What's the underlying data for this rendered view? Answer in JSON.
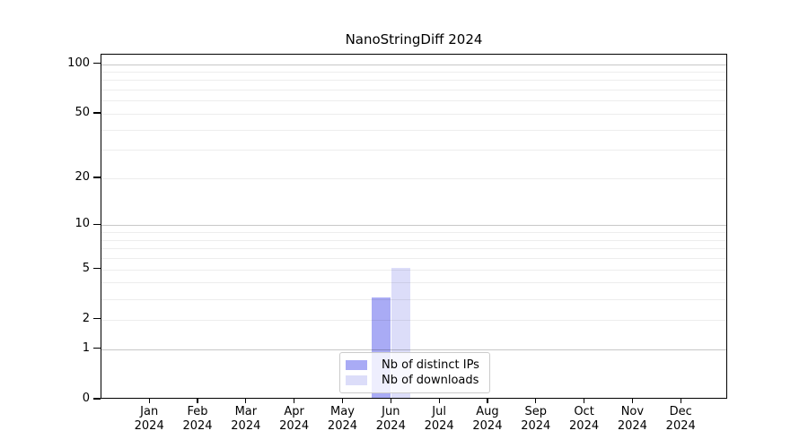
{
  "figure": {
    "background": "#ffffff"
  },
  "chart_data": {
    "type": "bar",
    "title": "NanoStringDiff 2024",
    "categories": [
      "Jan",
      "Feb",
      "Mar",
      "Apr",
      "May",
      "Jun",
      "Jul",
      "Aug",
      "Sep",
      "Oct",
      "Nov",
      "Dec"
    ],
    "x_tick_year": "2024",
    "series": [
      {
        "name": "Nb of distinct IPs",
        "color": "#a9abf5",
        "values": [
          0,
          0,
          0,
          0,
          0,
          3,
          0,
          0,
          0,
          0,
          0,
          0
        ]
      },
      {
        "name": "Nb of downloads",
        "color": "#dcddf9",
        "values": [
          0,
          0,
          0,
          0,
          0,
          5,
          0,
          0,
          0,
          0,
          0,
          0
        ]
      }
    ],
    "y_axis": {
      "scale": "log1p",
      "ticks": [
        0,
        1,
        2,
        5,
        10,
        20,
        50,
        100
      ],
      "top_value": 114,
      "grid_major": [
        1,
        10,
        100
      ],
      "grid_minor": [
        2,
        3,
        4,
        5,
        6,
        7,
        8,
        9,
        20,
        30,
        40,
        50,
        60,
        70,
        80,
        90
      ]
    },
    "legend": {
      "position": "lower-center",
      "frame": true
    }
  }
}
